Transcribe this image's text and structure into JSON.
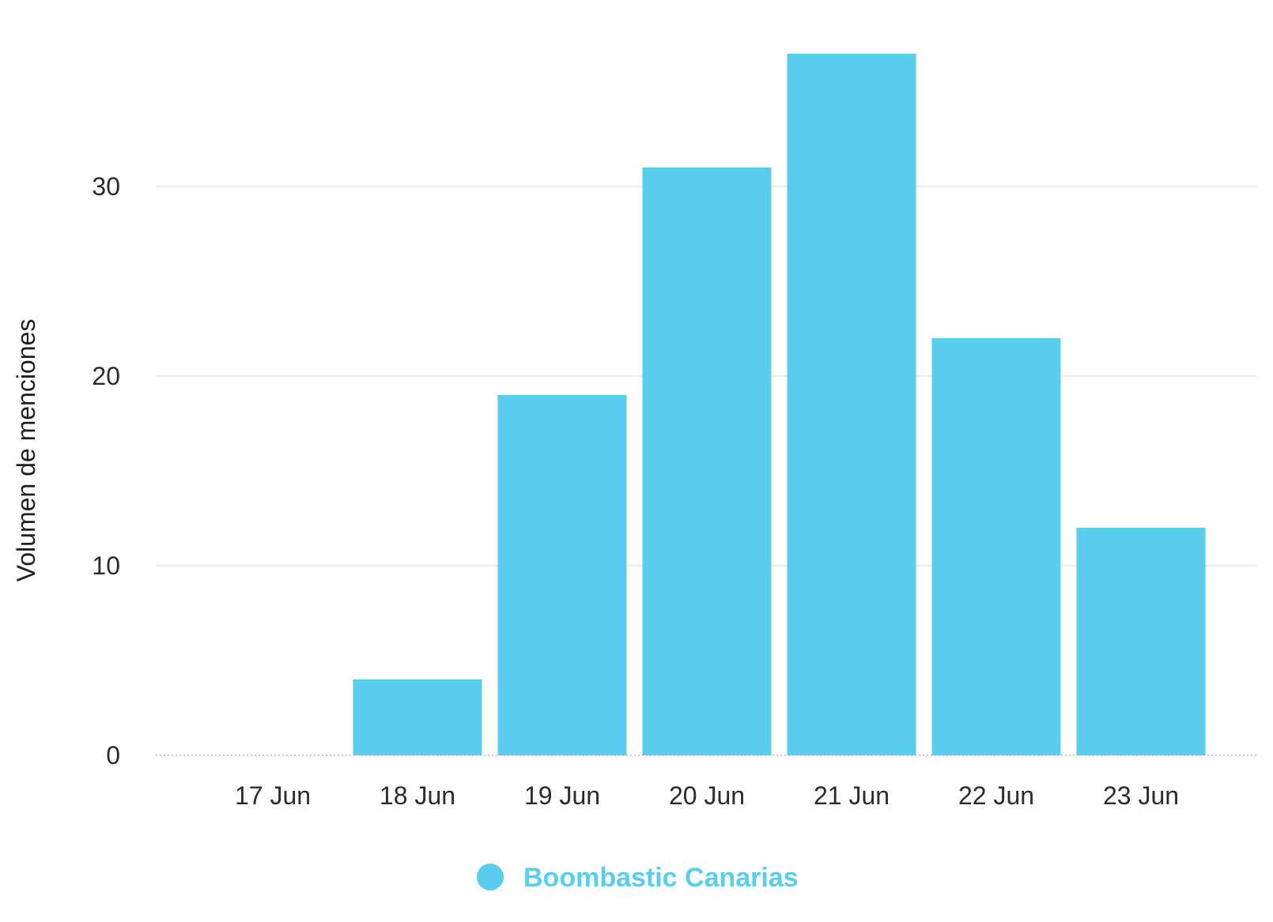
{
  "chart_data": {
    "type": "bar",
    "categories": [
      "17 Jun",
      "18 Jun",
      "19 Jun",
      "20 Jun",
      "21 Jun",
      "22 Jun",
      "23 Jun"
    ],
    "series": [
      {
        "name": "Boombastic Canarias",
        "values": [
          0,
          4,
          19,
          31,
          37,
          22,
          12
        ],
        "color": "#59CDEB"
      }
    ],
    "title": "",
    "xlabel": "",
    "ylabel": "Volumen de menciones",
    "ylim": [
      0,
      37
    ],
    "yticks": [
      0,
      10,
      20,
      30
    ],
    "ytick_labels": [
      "0",
      "10",
      "20",
      "30"
    ],
    "grid": true,
    "legend": "bottom-center"
  }
}
